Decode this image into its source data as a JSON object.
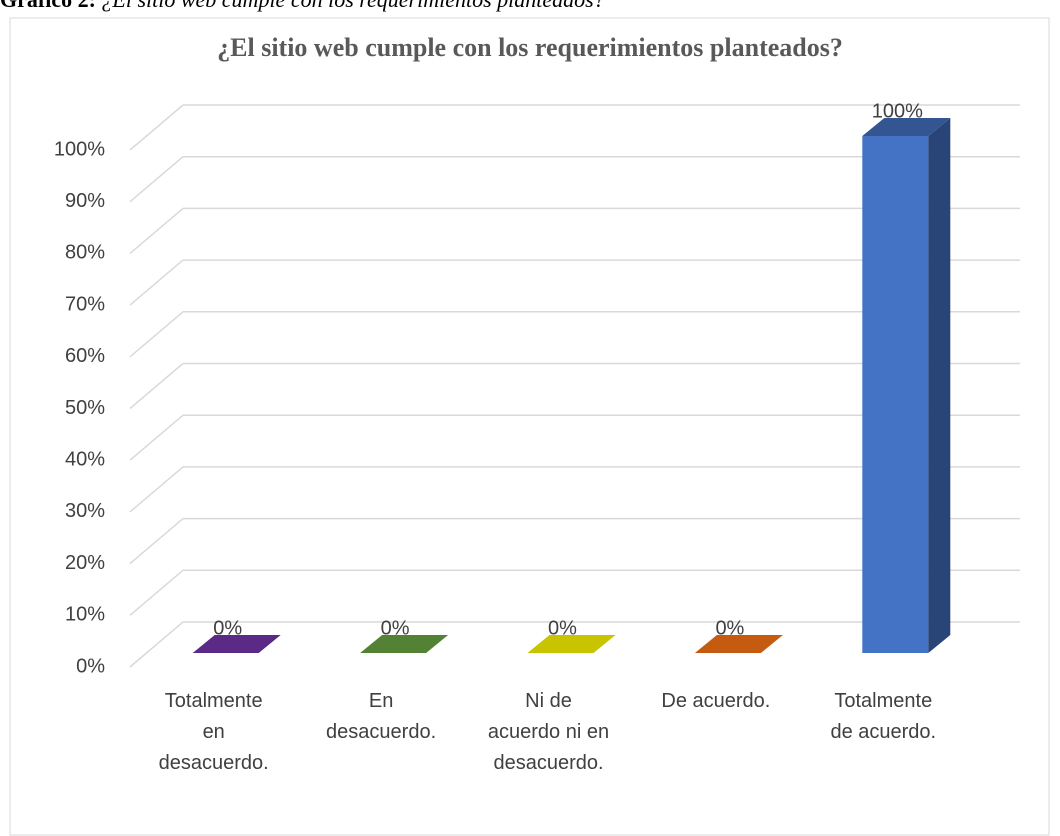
{
  "caption": {
    "label": "Gráfico 2:",
    "text": "¿El sitio web cumple con los requerimientos planteados?"
  },
  "chart_data": {
    "type": "bar3d",
    "title": "¿El sitio web cumple con los requerimientos planteados?",
    "categories": [
      "Totalmente en desacuerdo.",
      "En desacuerdo.",
      "Ni de acuerdo ni en desacuerdo.",
      "De acuerdo.",
      "Totalmente de acuerdo."
    ],
    "values": [
      0,
      0,
      0,
      0,
      100
    ],
    "value_labels": [
      "0%",
      "0%",
      "0%",
      "0%",
      "100%"
    ],
    "colors": [
      "#5b2a86",
      "#548235",
      "#c9c400",
      "#c55a11",
      "#4472c4"
    ],
    "ylim": [
      0,
      100
    ],
    "yticks": [
      {
        "value": 0,
        "label": "0%"
      },
      {
        "value": 10,
        "label": "10%"
      },
      {
        "value": 20,
        "label": "20%"
      },
      {
        "value": 30,
        "label": "30%"
      },
      {
        "value": 40,
        "label": "40%"
      },
      {
        "value": 50,
        "label": "50%"
      },
      {
        "value": 60,
        "label": "60%"
      },
      {
        "value": 70,
        "label": "70%"
      },
      {
        "value": 80,
        "label": "80%"
      },
      {
        "value": 90,
        "label": "90%"
      },
      {
        "value": 100,
        "label": "100%"
      }
    ],
    "grid": true
  }
}
